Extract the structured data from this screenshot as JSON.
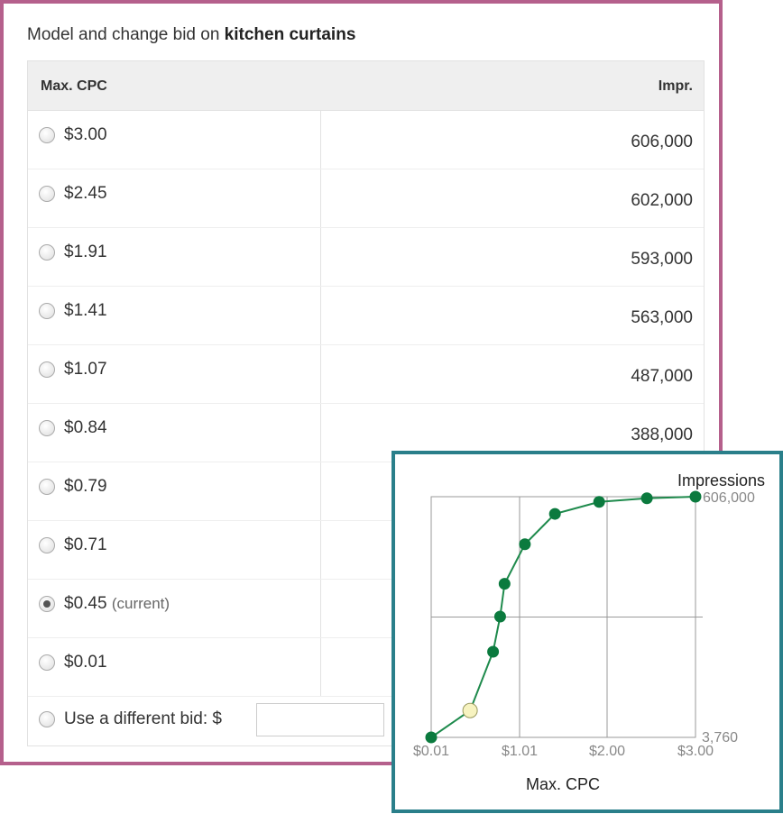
{
  "title": {
    "prefix": "Model and change bid on ",
    "keyword": "kitchen curtains"
  },
  "table": {
    "headers": {
      "cpc": "Max. CPC",
      "impr": "Impr."
    },
    "rows": [
      {
        "bid": "$3.00",
        "impr": "606,000",
        "selected": false
      },
      {
        "bid": "$2.45",
        "impr": "602,000",
        "selected": false
      },
      {
        "bid": "$1.91",
        "impr": "593,000",
        "selected": false
      },
      {
        "bid": "$1.41",
        "impr": "563,000",
        "selected": false
      },
      {
        "bid": "$1.07",
        "impr": "487,000",
        "selected": false
      },
      {
        "bid": "$0.84",
        "impr": "388,000",
        "selected": false
      },
      {
        "bid": "$0.79",
        "selected": false
      },
      {
        "bid": "$0.71",
        "selected": false
      },
      {
        "bid": "$0.45",
        "note": "(current)",
        "selected": true
      },
      {
        "bid": "$0.01",
        "selected": false
      }
    ],
    "custom": {
      "label": "Use a different bid:",
      "currency": "$",
      "value": ""
    }
  },
  "chart_data": {
    "type": "line",
    "xlabel": "Max. CPC",
    "ylabel": "Impressions",
    "x_ticks": [
      "$0.01",
      "$1.01",
      "$2.00",
      "$3.00"
    ],
    "y_ticks": [
      "3,760",
      "606,000"
    ],
    "xlim": [
      0.01,
      3.0
    ],
    "ylim": [
      3760,
      606000
    ],
    "grid": true,
    "line_color": "#1e8a4c",
    "point_color": "#0b7a3e",
    "current_point_color": "#f7f3c0",
    "points": [
      {
        "x": 0.01,
        "y": 3760
      },
      {
        "x": 0.45,
        "y": 71000,
        "current": true
      },
      {
        "x": 0.71,
        "y": 218000
      },
      {
        "x": 0.79,
        "y": 306000
      },
      {
        "x": 0.84,
        "y": 388000
      },
      {
        "x": 1.07,
        "y": 487000
      },
      {
        "x": 1.41,
        "y": 563000
      },
      {
        "x": 1.91,
        "y": 593000
      },
      {
        "x": 2.45,
        "y": 602000
      },
      {
        "x": 3.0,
        "y": 606000
      }
    ]
  }
}
